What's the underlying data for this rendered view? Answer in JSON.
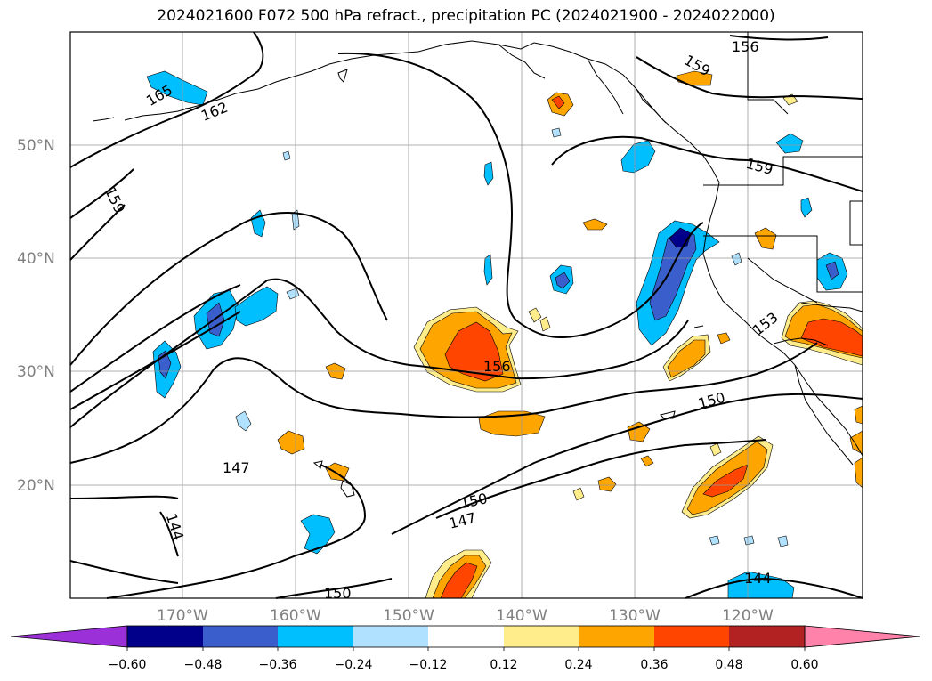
{
  "title": "2024021600 F072 500 hPa refract., precipitation PC (2024021900 - 2024022000)",
  "map": {
    "lat_labels": [
      "50°N",
      "40°N",
      "30°N",
      "20°N"
    ],
    "lon_labels": [
      "170°W",
      "160°W",
      "150°W",
      "140°W",
      "130°W",
      "120°W"
    ],
    "contour_labels": [
      "165",
      "162",
      "159",
      "156",
      "159",
      "159",
      "156",
      "153",
      "150",
      "150",
      "147",
      "147",
      "144",
      "150",
      "144"
    ]
  },
  "colorbar": {
    "ticks": [
      "−0.60",
      "−0.48",
      "−0.36",
      "−0.24",
      "−0.12",
      "0.12",
      "0.24",
      "0.36",
      "0.48",
      "0.60"
    ],
    "colors": [
      "#9b30d9",
      "#00008b",
      "#3a5fcd",
      "#00bfff",
      "#b0e2ff",
      "#ffffff",
      "#ffec8b",
      "#ffa500",
      "#ff4500",
      "#b22222",
      "#ff82ab"
    ]
  }
}
